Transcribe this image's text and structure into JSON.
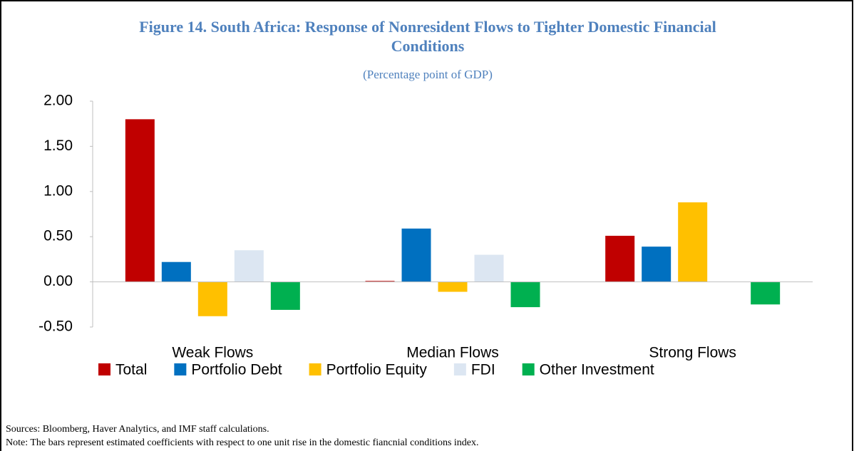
{
  "chart_data": {
    "type": "bar",
    "title": "Figure 14. South Africa: Response of Nonresident Flows to Tighter Domestic Financial Conditions",
    "subtitle": "(Percentage point of GDP)",
    "categories": [
      "Weak Flows",
      "Median Flows",
      "Strong Flows"
    ],
    "series": [
      {
        "name": "Total",
        "color": "#c00000",
        "values": [
          1.8,
          0.01,
          0.51
        ]
      },
      {
        "name": "Portfolio Debt",
        "color": "#0070c0",
        "values": [
          0.22,
          0.59,
          0.39
        ]
      },
      {
        "name": "Portfolio Equity",
        "color": "#ffc000",
        "values": [
          -0.38,
          -0.11,
          0.88
        ]
      },
      {
        "name": "FDI",
        "color": "#dce6f2",
        "values": [
          0.35,
          0.3,
          null
        ]
      },
      {
        "name": "Other Investment",
        "color": "#00b050",
        "values": [
          -0.31,
          -0.28,
          -0.25
        ]
      }
    ],
    "ylim": [
      -0.5,
      2.0
    ],
    "yticks": [
      {
        "value": -0.5,
        "label": "-0.50"
      },
      {
        "value": 0,
        "label": "0.00"
      },
      {
        "value": 0.5,
        "label": "0.50"
      },
      {
        "value": 1.0,
        "label": "1.00"
      },
      {
        "value": 1.5,
        "label": "1.50"
      },
      {
        "value": 2.0,
        "label": "2.00"
      }
    ],
    "legend": "bottom",
    "notes": [
      "Sources: Bloomberg, Haver Analytics, and IMF staff calculations.",
      "Note: The bars represent estimated coefficients with respect to one unit rise in the domestic fiancnial conditions index."
    ]
  }
}
